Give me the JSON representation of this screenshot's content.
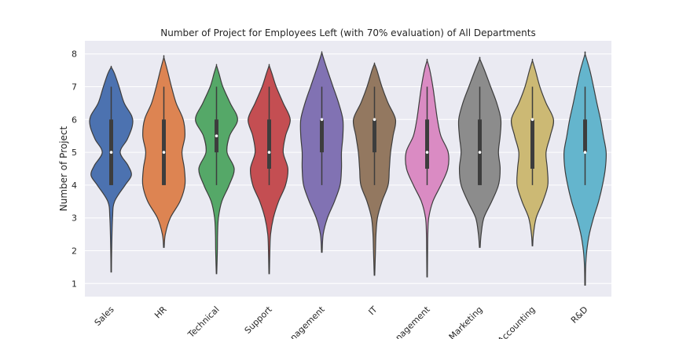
{
  "chart_data": {
    "type": "violin",
    "title": "Number of Project for Employees Left (with 70% evaluation) of All Departments",
    "xlabel": "",
    "ylabel": "Number of Project",
    "ylim": [
      0.6,
      8.4
    ],
    "yticks": [
      1,
      2,
      3,
      4,
      5,
      6,
      7,
      8
    ],
    "grid": true,
    "legend": "none",
    "categories": [
      "Sales",
      "HR",
      "Technical",
      "Support",
      "Management",
      "IT",
      "Product Management",
      "Marketing",
      "Accounting",
      "R&D"
    ],
    "visible_tick_labels": [
      "Sales",
      "HR",
      "Technical",
      "Support",
      "nagement",
      "IT",
      "nagement",
      "Marketing",
      "Accounting",
      "R&D"
    ],
    "colors": [
      "#4c72b0",
      "#dd8452",
      "#55a868",
      "#c44e52",
      "#8172b3",
      "#937860",
      "#da8bc3",
      "#8c8c8c",
      "#ccb974",
      "#64b5cd"
    ],
    "series": [
      {
        "category": "Sales",
        "min": 1.35,
        "max": 7.6,
        "q1": 4,
        "median": 5,
        "q3": 6,
        "whisker_low": 4,
        "whisker_high": 7,
        "density": [
          [
            1.35,
            0.01
          ],
          [
            2.0,
            0.02
          ],
          [
            3.0,
            0.06
          ],
          [
            3.5,
            0.15
          ],
          [
            4.0,
            0.62
          ],
          [
            4.3,
            0.9
          ],
          [
            4.6,
            0.75
          ],
          [
            5.0,
            0.4
          ],
          [
            5.4,
            0.72
          ],
          [
            5.8,
            0.94
          ],
          [
            6.1,
            0.92
          ],
          [
            6.5,
            0.58
          ],
          [
            7.0,
            0.35
          ],
          [
            7.4,
            0.15
          ],
          [
            7.6,
            0.0
          ]
        ]
      },
      {
        "category": "HR",
        "min": 2.1,
        "max": 7.9,
        "q1": 4,
        "median": 5,
        "q3": 6,
        "whisker_low": 4,
        "whisker_high": 7,
        "density": [
          [
            2.1,
            0.01
          ],
          [
            2.5,
            0.05
          ],
          [
            3.0,
            0.22
          ],
          [
            3.5,
            0.55
          ],
          [
            4.0,
            0.72
          ],
          [
            4.5,
            0.7
          ],
          [
            5.0,
            0.62
          ],
          [
            5.5,
            0.72
          ],
          [
            6.0,
            0.66
          ],
          [
            6.5,
            0.42
          ],
          [
            7.0,
            0.26
          ],
          [
            7.5,
            0.12
          ],
          [
            7.9,
            0.0
          ]
        ]
      },
      {
        "category": "Technical",
        "min": 1.3,
        "max": 7.65,
        "q1": 5,
        "median": 5.5,
        "q3": 6,
        "whisker_low": 4,
        "whisker_high": 7,
        "density": [
          [
            1.3,
            0.01
          ],
          [
            2.0,
            0.04
          ],
          [
            2.5,
            0.05
          ],
          [
            3.0,
            0.09
          ],
          [
            3.5,
            0.25
          ],
          [
            4.0,
            0.6
          ],
          [
            4.5,
            0.84
          ],
          [
            5.0,
            0.5
          ],
          [
            5.5,
            0.62
          ],
          [
            6.0,
            1.0
          ],
          [
            6.5,
            0.65
          ],
          [
            7.0,
            0.3
          ],
          [
            7.4,
            0.12
          ],
          [
            7.65,
            0.0
          ]
        ]
      },
      {
        "category": "Support",
        "min": 1.3,
        "max": 7.65,
        "q1": 4.5,
        "median": 5,
        "q3": 6,
        "whisker_low": 4,
        "whisker_high": 7,
        "density": [
          [
            1.3,
            0.01
          ],
          [
            2.0,
            0.03
          ],
          [
            2.5,
            0.06
          ],
          [
            3.0,
            0.18
          ],
          [
            3.5,
            0.4
          ],
          [
            4.0,
            0.7
          ],
          [
            4.5,
            0.8
          ],
          [
            5.0,
            0.6
          ],
          [
            5.5,
            0.7
          ],
          [
            6.0,
            0.9
          ],
          [
            6.5,
            0.6
          ],
          [
            7.0,
            0.3
          ],
          [
            7.4,
            0.12
          ],
          [
            7.65,
            0.0
          ]
        ]
      },
      {
        "category": "Management",
        "min": 1.95,
        "max": 8.05,
        "q1": 5,
        "median": 6,
        "q3": 6,
        "whisker_low": 4,
        "whisker_high": 7,
        "density": [
          [
            1.95,
            0.01
          ],
          [
            2.5,
            0.05
          ],
          [
            3.0,
            0.2
          ],
          [
            3.5,
            0.45
          ],
          [
            4.0,
            0.65
          ],
          [
            4.5,
            0.7
          ],
          [
            5.0,
            0.7
          ],
          [
            5.5,
            0.75
          ],
          [
            6.0,
            0.75
          ],
          [
            6.5,
            0.6
          ],
          [
            7.0,
            0.4
          ],
          [
            7.5,
            0.2
          ],
          [
            7.9,
            0.05
          ],
          [
            8.05,
            0.0
          ]
        ]
      },
      {
        "category": "IT",
        "min": 1.25,
        "max": 7.7,
        "q1": 5,
        "median": 6,
        "q3": 6,
        "whisker_low": 4,
        "whisker_high": 7,
        "density": [
          [
            1.25,
            0.01
          ],
          [
            2.0,
            0.04
          ],
          [
            2.5,
            0.06
          ],
          [
            3.0,
            0.12
          ],
          [
            3.5,
            0.3
          ],
          [
            4.0,
            0.55
          ],
          [
            4.5,
            0.6
          ],
          [
            5.0,
            0.65
          ],
          [
            5.5,
            0.75
          ],
          [
            6.0,
            0.85
          ],
          [
            6.5,
            0.55
          ],
          [
            7.0,
            0.3
          ],
          [
            7.5,
            0.1
          ],
          [
            7.7,
            0.0
          ]
        ]
      },
      {
        "category": "Product Management",
        "min": 1.2,
        "max": 7.8,
        "q1": 4.5,
        "median": 5,
        "q3": 6,
        "whisker_low": 4,
        "whisker_high": 7,
        "density": [
          [
            1.2,
            0.01
          ],
          [
            2.0,
            0.02
          ],
          [
            2.5,
            0.03
          ],
          [
            3.0,
            0.07
          ],
          [
            3.5,
            0.25
          ],
          [
            4.0,
            0.6
          ],
          [
            4.5,
            0.9
          ],
          [
            5.0,
            0.92
          ],
          [
            5.5,
            0.6
          ],
          [
            6.0,
            0.45
          ],
          [
            6.5,
            0.35
          ],
          [
            7.0,
            0.25
          ],
          [
            7.5,
            0.12
          ],
          [
            7.8,
            0.0
          ]
        ]
      },
      {
        "category": "Marketing",
        "min": 2.1,
        "max": 7.85,
        "q1": 4,
        "median": 5,
        "q3": 6,
        "whisker_low": 4,
        "whisker_high": 7,
        "density": [
          [
            2.1,
            0.01
          ],
          [
            2.5,
            0.04
          ],
          [
            3.0,
            0.12
          ],
          [
            3.5,
            0.35
          ],
          [
            4.0,
            0.55
          ],
          [
            4.5,
            0.6
          ],
          [
            5.0,
            0.55
          ],
          [
            5.5,
            0.6
          ],
          [
            6.0,
            0.62
          ],
          [
            6.5,
            0.5
          ],
          [
            7.0,
            0.32
          ],
          [
            7.5,
            0.14
          ],
          [
            7.85,
            0.0
          ]
        ]
      },
      {
        "category": "Accounting",
        "min": 2.15,
        "max": 7.8,
        "q1": 4.5,
        "median": 6,
        "q3": 6,
        "whisker_low": 4,
        "whisker_high": 7,
        "density": [
          [
            2.15,
            0.01
          ],
          [
            2.5,
            0.04
          ],
          [
            3.0,
            0.15
          ],
          [
            3.5,
            0.42
          ],
          [
            4.0,
            0.62
          ],
          [
            4.5,
            0.6
          ],
          [
            5.0,
            0.55
          ],
          [
            5.5,
            0.72
          ],
          [
            6.0,
            0.85
          ],
          [
            6.5,
            0.55
          ],
          [
            7.0,
            0.3
          ],
          [
            7.5,
            0.12
          ],
          [
            7.8,
            0.0
          ]
        ]
      },
      {
        "category": "R&D",
        "min": 0.95,
        "max": 8.0,
        "q1": 5,
        "median": 5,
        "q3": 6,
        "whisker_low": 4,
        "whisker_high": 7,
        "density": [
          [
            0.95,
            0.01
          ],
          [
            1.5,
            0.02
          ],
          [
            2.0,
            0.06
          ],
          [
            2.5,
            0.15
          ],
          [
            3.0,
            0.3
          ],
          [
            3.5,
            0.48
          ],
          [
            4.0,
            0.62
          ],
          [
            4.5,
            0.72
          ],
          [
            5.0,
            0.75
          ],
          [
            5.5,
            0.65
          ],
          [
            6.0,
            0.55
          ],
          [
            6.5,
            0.42
          ],
          [
            7.0,
            0.3
          ],
          [
            7.5,
            0.17
          ],
          [
            8.0,
            0.0
          ]
        ]
      }
    ]
  }
}
